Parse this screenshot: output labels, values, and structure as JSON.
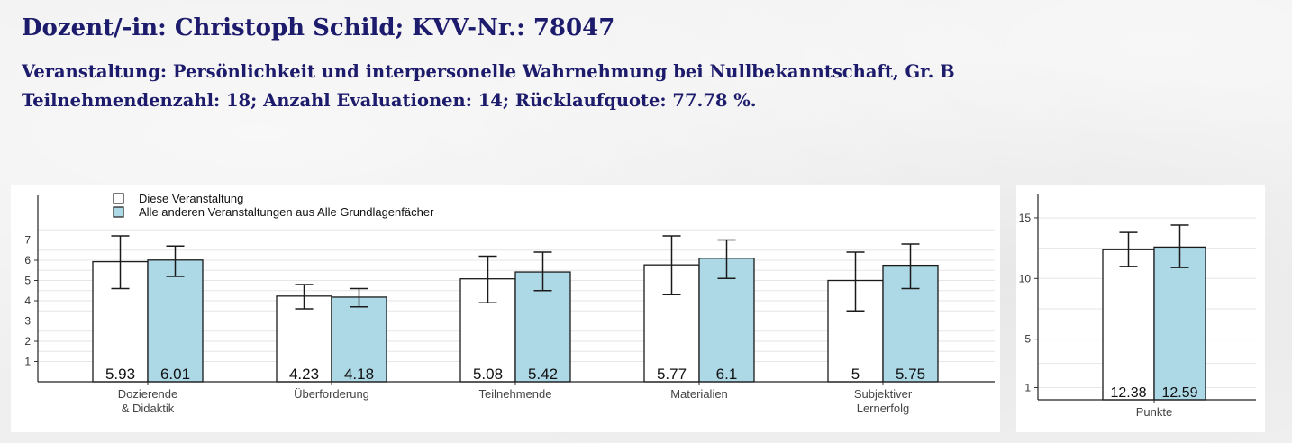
{
  "header": {
    "title": "Dozent/-in: Christoph Schild; KVV-Nr.: 78047",
    "course_line": "Veranstaltung: Persönlichkeit und interpersonelle Wahrnehmung bei Nullbekanntschaft, Gr. B",
    "stats_line": "Teilnehmendenzahl: 18; Anzahl Evaluationen: 14; Rücklaufquote: 77.78 %."
  },
  "colors": {
    "title_text": "#1d1b6b",
    "this_course_fill": "#ffffff",
    "other_courses_fill": "#add8e6",
    "bar_stroke": "#1a1a1a",
    "grid": "#e6e6e6"
  },
  "chart_data": [
    {
      "type": "bar",
      "categories": [
        "Dozierende\n& Didaktik",
        "Überforderung",
        "Teilnehmende",
        "Materialien",
        "Subjektiver\nLernerfolg"
      ],
      "series": [
        {
          "name": "Diese Veranstaltung",
          "values": [
            5.93,
            4.23,
            5.08,
            5.77,
            5
          ],
          "labels": [
            "5.93",
            "4.23",
            "5.08",
            "5.77",
            "5"
          ],
          "error_low": [
            4.6,
            3.6,
            3.9,
            4.3,
            3.5
          ],
          "error_high": [
            7.2,
            4.8,
            6.2,
            7.2,
            6.4
          ]
        },
        {
          "name": "Alle anderen Veranstaltungen aus Alle Grundlagenfächer",
          "values": [
            6.01,
            4.18,
            5.42,
            6.1,
            5.75
          ],
          "labels": [
            "6.01",
            "4.18",
            "5.42",
            "6.1",
            "5.75"
          ],
          "error_low": [
            5.2,
            3.7,
            4.5,
            5.1,
            4.6
          ],
          "error_high": [
            6.7,
            4.6,
            6.4,
            7.0,
            6.8
          ]
        }
      ],
      "yticks": [
        1,
        2,
        3,
        4,
        5,
        6,
        7
      ],
      "ylim": [
        0,
        9.2
      ],
      "legend_position": "top-left",
      "grid": true
    },
    {
      "type": "bar",
      "categories": [
        "Punkte"
      ],
      "series": [
        {
          "name": "Diese Veranstaltung",
          "values": [
            12.38
          ],
          "labels": [
            "12.38"
          ],
          "error_low": [
            11.0
          ],
          "error_high": [
            13.8
          ]
        },
        {
          "name": "Alle anderen Veranstaltungen aus Alle Grundlagenfächer",
          "values": [
            12.59
          ],
          "labels": [
            "12.59"
          ],
          "error_low": [
            10.9
          ],
          "error_high": [
            14.4
          ]
        }
      ],
      "yticks": [
        1,
        5,
        10,
        15
      ],
      "ylim": [
        0,
        17
      ],
      "grid": true
    }
  ]
}
